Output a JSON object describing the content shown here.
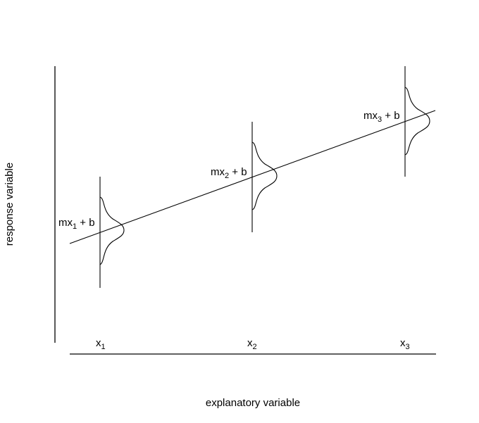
{
  "axes": {
    "xlabel": "explanatory variable",
    "ylabel": "response variable"
  },
  "points": [
    {
      "x_label": {
        "base": "x",
        "sub": "1"
      },
      "mean_label": {
        "pre": "mx",
        "sub": "1",
        "post": " + b"
      }
    },
    {
      "x_label": {
        "base": "x",
        "sub": "2"
      },
      "mean_label": {
        "pre": "mx",
        "sub": "2",
        "post": " + b"
      }
    },
    {
      "x_label": {
        "base": "x",
        "sub": "3"
      },
      "mean_label": {
        "pre": "mx",
        "sub": "3",
        "post": " + b"
      }
    }
  ]
}
